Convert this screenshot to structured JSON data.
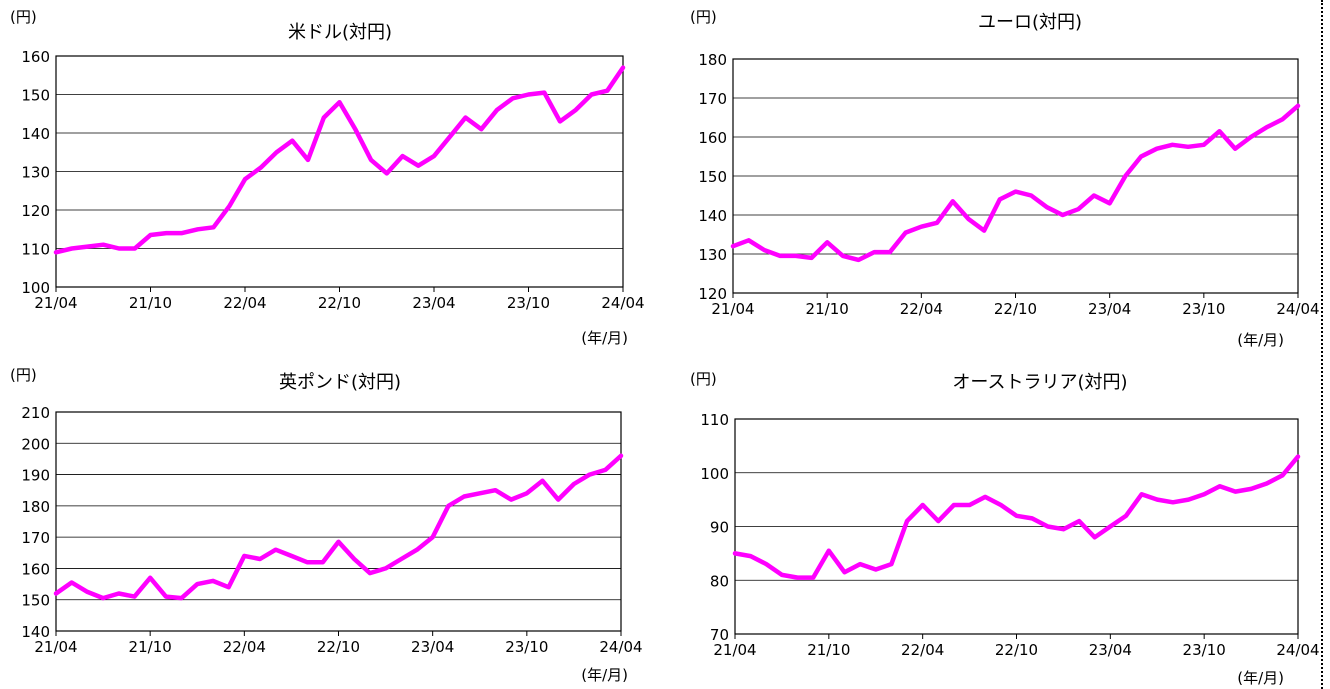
{
  "chart_data": [
    {
      "type": "line",
      "title": "米ドル(対円)",
      "yunit": "(円)",
      "xunit": "(年/月)",
      "ylim": [
        100,
        160
      ],
      "yticks": [
        100,
        110,
        120,
        130,
        140,
        150,
        160
      ],
      "x_range": [
        "21/04",
        "24/04"
      ],
      "xticks": [
        "21/04",
        "21/10",
        "22/04",
        "22/10",
        "23/04",
        "23/10",
        "24/04"
      ],
      "grid": true,
      "line_color": "#ff00ff",
      "series": [
        {
          "x": [
            "21/04",
            "21/05",
            "21/06",
            "21/07",
            "21/08",
            "21/09",
            "21/10",
            "21/11",
            "21/12",
            "22/01",
            "22/02",
            "22/03",
            "22/04",
            "22/05",
            "22/06",
            "22/07",
            "22/08",
            "22/09",
            "22/10",
            "22/11",
            "22/12",
            "23/01",
            "23/02",
            "23/03",
            "23/04",
            "23/05",
            "23/06",
            "23/07",
            "23/08",
            "23/09",
            "23/10",
            "23/11",
            "23/12",
            "24/01",
            "24/02",
            "24/03",
            "24/04"
          ],
          "values": [
            109,
            110,
            110.5,
            111,
            110,
            110,
            113.5,
            114,
            114,
            115,
            115.5,
            121,
            128,
            131,
            135,
            138,
            133,
            144,
            148,
            141,
            133,
            129.5,
            134,
            131.5,
            134,
            139,
            144,
            141,
            146,
            149,
            150,
            150.5,
            143,
            146,
            150,
            151,
            157
          ]
        }
      ]
    },
    {
      "type": "line",
      "title": "ユーロ(対円)",
      "yunit": "(円)",
      "xunit": "(年/月)",
      "ylim": [
        120,
        180
      ],
      "yticks": [
        120,
        130,
        140,
        150,
        160,
        170,
        180
      ],
      "x_range": [
        "21/04",
        "24/04"
      ],
      "xticks": [
        "21/04",
        "21/10",
        "22/04",
        "22/10",
        "23/04",
        "23/10",
        "24/04"
      ],
      "grid": true,
      "line_color": "#ff00ff",
      "series": [
        {
          "x": [
            "21/04",
            "21/05",
            "21/06",
            "21/07",
            "21/08",
            "21/09",
            "21/10",
            "21/11",
            "21/12",
            "22/01",
            "22/02",
            "22/03",
            "22/04",
            "22/05",
            "22/06",
            "22/07",
            "22/08",
            "22/09",
            "22/10",
            "22/11",
            "22/12",
            "23/01",
            "23/02",
            "23/03",
            "23/04",
            "23/05",
            "23/06",
            "23/07",
            "23/08",
            "23/09",
            "23/10",
            "23/11",
            "23/12",
            "24/01",
            "24/02",
            "24/03",
            "24/04"
          ],
          "values": [
            132,
            133.5,
            131,
            129.5,
            129.5,
            129,
            133,
            129.5,
            128.5,
            130.5,
            130.5,
            135.5,
            137,
            138,
            143.5,
            139,
            136,
            144,
            146,
            145,
            142,
            140,
            141.5,
            145,
            143,
            150,
            155,
            157,
            158,
            157.5,
            158,
            161.5,
            157,
            160,
            162.5,
            164.5,
            168
          ]
        }
      ]
    },
    {
      "type": "line",
      "title": "英ポンド(対円)",
      "yunit": "(円)",
      "xunit": "(年/月)",
      "ylim": [
        140,
        210
      ],
      "yticks": [
        140,
        150,
        160,
        170,
        180,
        190,
        200,
        210
      ],
      "x_range": [
        "21/04",
        "24/04"
      ],
      "xticks": [
        "21/04",
        "21/10",
        "22/04",
        "22/10",
        "23/04",
        "23/10",
        "24/04"
      ],
      "grid": true,
      "line_color": "#ff00ff",
      "series": [
        {
          "x": [
            "21/04",
            "21/05",
            "21/06",
            "21/07",
            "21/08",
            "21/09",
            "21/10",
            "21/11",
            "21/12",
            "22/01",
            "22/02",
            "22/03",
            "22/04",
            "22/05",
            "22/06",
            "22/07",
            "22/08",
            "22/09",
            "22/10",
            "22/11",
            "22/12",
            "23/01",
            "23/02",
            "23/03",
            "23/04",
            "23/05",
            "23/06",
            "23/07",
            "23/08",
            "23/09",
            "23/10",
            "23/11",
            "23/12",
            "24/01",
            "24/02",
            "24/03",
            "24/04"
          ],
          "values": [
            152,
            155.5,
            152.5,
            150.5,
            152,
            151,
            157,
            151,
            150.5,
            155,
            156,
            154,
            164,
            163,
            166,
            164,
            162,
            162,
            168.5,
            163,
            158.5,
            160,
            163,
            166,
            170,
            180,
            183,
            184,
            185,
            182,
            184,
            188,
            182,
            187,
            190,
            191.5,
            196
          ]
        }
      ]
    },
    {
      "type": "line",
      "title": "オーストラリア(対円)",
      "yunit": "(円)",
      "xunit": "(年/月)",
      "ylim": [
        70,
        110
      ],
      "yticks": [
        70,
        80,
        90,
        100,
        110
      ],
      "x_range": [
        "21/04",
        "24/04"
      ],
      "xticks": [
        "21/04",
        "21/10",
        "22/04",
        "22/10",
        "23/04",
        "23/10",
        "24/04"
      ],
      "grid": true,
      "line_color": "#ff00ff",
      "series": [
        {
          "x": [
            "21/04",
            "21/05",
            "21/06",
            "21/07",
            "21/08",
            "21/09",
            "21/10",
            "21/11",
            "21/12",
            "22/01",
            "22/02",
            "22/03",
            "22/04",
            "22/05",
            "22/06",
            "22/07",
            "22/08",
            "22/09",
            "22/10",
            "22/11",
            "22/12",
            "23/01",
            "23/02",
            "23/03",
            "23/04",
            "23/05",
            "23/06",
            "23/07",
            "23/08",
            "23/09",
            "23/10",
            "23/11",
            "23/12",
            "24/01",
            "24/02",
            "24/03",
            "24/04"
          ],
          "values": [
            85,
            84.5,
            83,
            81,
            80.5,
            80.5,
            85.5,
            81.5,
            83,
            82,
            83,
            91,
            94,
            91,
            94,
            94,
            95.5,
            94,
            92,
            91.5,
            90,
            89.5,
            91,
            88,
            90,
            92,
            96,
            95,
            94.5,
            95,
            96,
            97.5,
            96.5,
            97,
            98,
            99.5,
            103
          ]
        }
      ]
    }
  ]
}
